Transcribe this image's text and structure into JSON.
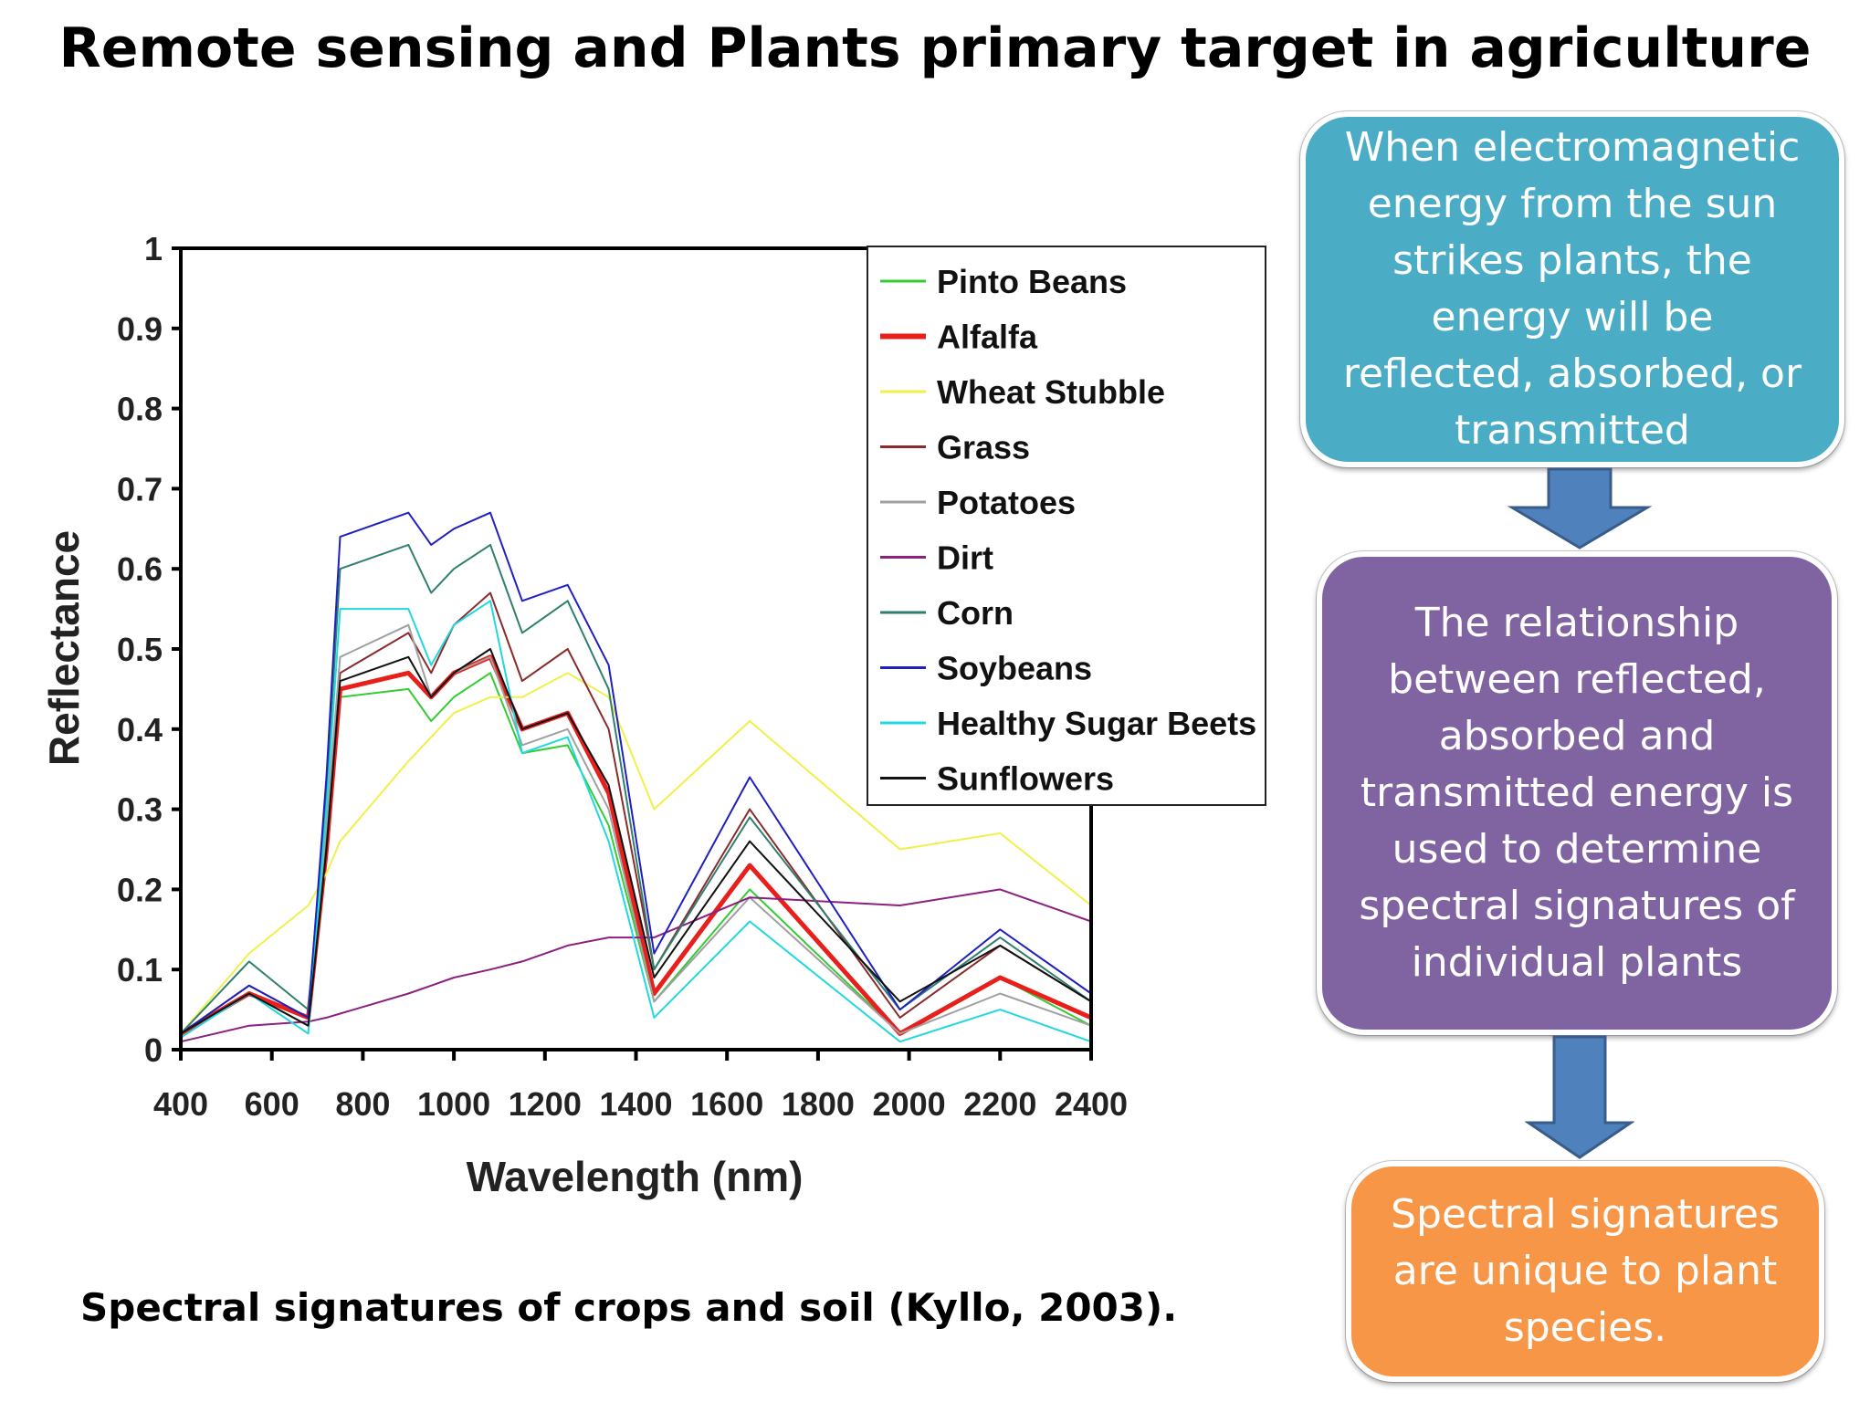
{
  "title": "Remote sensing and Plants primary target in agriculture",
  "caption": "Spectral signatures of crops and soil (Kyllo, 2003).",
  "flow": {
    "box1": "When electromagnetic energy from the sun strikes plants, the energy will be reflected, absorbed, or transmitted",
    "box2": "The relationship between reflected, absorbed and transmitted energy is used to determine spectral signatures of individual plants",
    "box3": "Spectral signatures are unique to plant species."
  },
  "colors": {
    "box1": "#4bacc6",
    "box2": "#8064a2",
    "box3": "#f79646",
    "arrow": "#4f81bd"
  },
  "chart_data": {
    "type": "line",
    "xlabel": "Wavelength (nm)",
    "ylabel": "Reflectance",
    "xlim": [
      400,
      2400
    ],
    "ylim": [
      0,
      1
    ],
    "x_ticks": [
      400,
      600,
      800,
      1000,
      1200,
      1400,
      1600,
      1800,
      2000,
      2200,
      2400
    ],
    "y_ticks": [
      0,
      0.1,
      0.2,
      0.3,
      0.4,
      0.5,
      0.6,
      0.7,
      0.8,
      0.9,
      1
    ],
    "y_tick_labels": [
      "0",
      "0.1",
      "0.2",
      "0.3",
      "0.4",
      "0.5",
      "0.6",
      "0.7",
      "0.8",
      "0.9",
      "1"
    ],
    "legend_position": "top-right",
    "grid": false,
    "x": [
      400,
      550,
      680,
      720,
      750,
      900,
      950,
      1000,
      1080,
      1150,
      1250,
      1340,
      1440,
      1650,
      1980,
      2200,
      2400
    ],
    "series": [
      {
        "name": "Pinto Beans",
        "color": "#33cc33",
        "width": 2,
        "values": [
          0.02,
          0.07,
          0.03,
          0.24,
          0.44,
          0.45,
          0.41,
          0.44,
          0.47,
          0.37,
          0.38,
          0.28,
          0.06,
          0.2,
          0.02,
          0.09,
          0.03
        ]
      },
      {
        "name": "Alfalfa",
        "color": "#e8201c",
        "width": 5,
        "values": [
          0.02,
          0.07,
          0.04,
          0.25,
          0.45,
          0.47,
          0.44,
          0.47,
          0.49,
          0.4,
          0.42,
          0.32,
          0.07,
          0.23,
          0.02,
          0.09,
          0.04
        ]
      },
      {
        "name": "Wheat Stubble",
        "color": "#f0f04a",
        "width": 2,
        "values": [
          0.02,
          0.12,
          0.18,
          0.22,
          0.26,
          0.36,
          0.39,
          0.42,
          0.44,
          0.44,
          0.47,
          0.44,
          0.3,
          0.41,
          0.25,
          0.27,
          0.18
        ]
      },
      {
        "name": "Grass",
        "color": "#8b2b2b",
        "width": 2,
        "values": [
          0.02,
          0.08,
          0.04,
          0.27,
          0.47,
          0.52,
          0.47,
          0.53,
          0.57,
          0.46,
          0.5,
          0.4,
          0.1,
          0.3,
          0.04,
          0.13,
          0.06
        ]
      },
      {
        "name": "Potatoes",
        "color": "#a0a0a0",
        "width": 2,
        "values": [
          0.02,
          0.07,
          0.03,
          0.28,
          0.49,
          0.53,
          0.44,
          0.47,
          0.49,
          0.38,
          0.4,
          0.3,
          0.06,
          0.19,
          0.02,
          0.07,
          0.03
        ]
      },
      {
        "name": "Dirt",
        "color": "#8b2080",
        "width": 2,
        "values": [
          0.01,
          0.03,
          0.035,
          0.04,
          0.045,
          0.07,
          0.08,
          0.09,
          0.1,
          0.11,
          0.13,
          0.14,
          0.14,
          0.19,
          0.18,
          0.2,
          0.16
        ]
      },
      {
        "name": "Corn",
        "color": "#2f7f6f",
        "width": 2,
        "values": [
          0.02,
          0.11,
          0.05,
          0.32,
          0.6,
          0.63,
          0.57,
          0.6,
          0.63,
          0.52,
          0.56,
          0.45,
          0.1,
          0.29,
          0.05,
          0.14,
          0.06
        ]
      },
      {
        "name": "Soybeans",
        "color": "#2020c0",
        "width": 2,
        "values": [
          0.02,
          0.08,
          0.04,
          0.34,
          0.64,
          0.67,
          0.63,
          0.65,
          0.67,
          0.56,
          0.58,
          0.48,
          0.12,
          0.34,
          0.05,
          0.15,
          0.07
        ]
      },
      {
        "name": "Healthy Sugar Beets",
        "color": "#22d8e0",
        "width": 2,
        "values": [
          0.015,
          0.07,
          0.02,
          0.3,
          0.55,
          0.55,
          0.48,
          0.53,
          0.56,
          0.37,
          0.39,
          0.26,
          0.04,
          0.16,
          0.01,
          0.05,
          0.01
        ]
      },
      {
        "name": "Sunflowers",
        "color": "#111111",
        "width": 2,
        "values": [
          0.02,
          0.07,
          0.03,
          0.25,
          0.46,
          0.49,
          0.44,
          0.47,
          0.5,
          0.4,
          0.42,
          0.33,
          0.09,
          0.26,
          0.06,
          0.13,
          0.06
        ]
      }
    ]
  }
}
